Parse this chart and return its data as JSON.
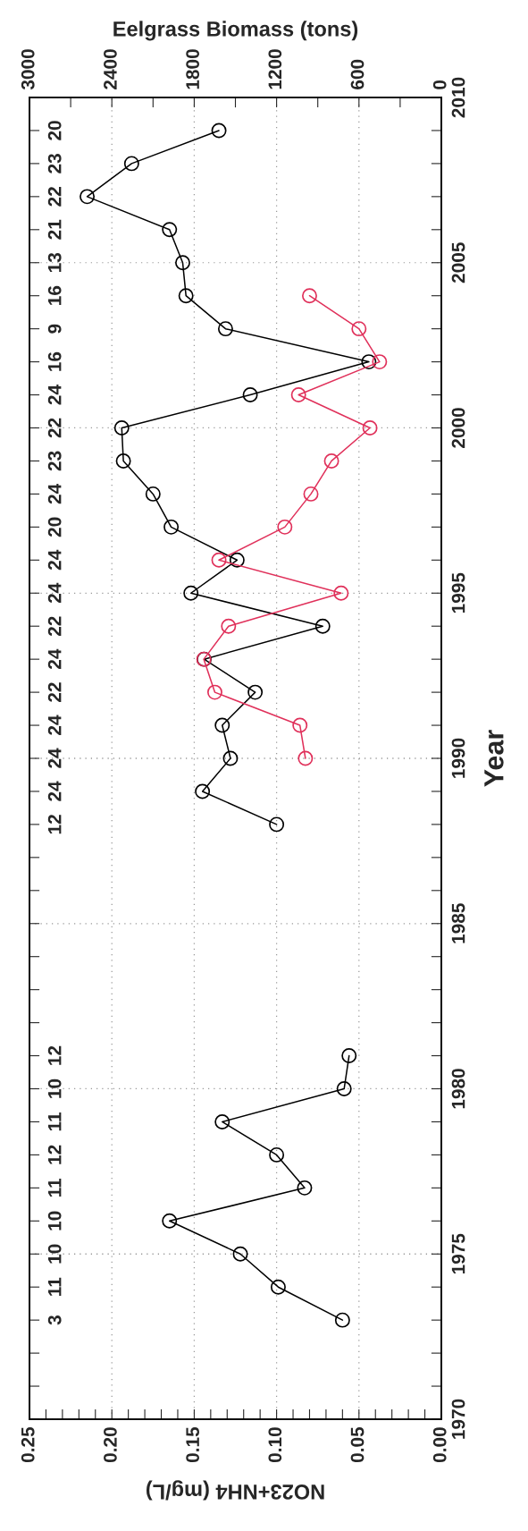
{
  "chart_data": {
    "type": "line",
    "orientation": "horizontal",
    "xlabel": "NO23+NH4 (mg/L)",
    "x2label": "Eelgrass Biomass (tons)",
    "ylabel": "Year",
    "xlim": [
      0.25,
      0
    ],
    "xticks": [
      {
        "value": 0,
        "label": "0.00"
      },
      {
        "value": 0.01,
        "label": null
      },
      {
        "value": 0.02,
        "label": null
      },
      {
        "value": 0.03,
        "label": null
      },
      {
        "value": 0.04,
        "label": null
      },
      {
        "value": 0.05,
        "label": "0.05"
      },
      {
        "value": 0.06,
        "label": null
      },
      {
        "value": 0.07,
        "label": null
      },
      {
        "value": 0.08,
        "label": null
      },
      {
        "value": 0.09,
        "label": null
      },
      {
        "value": 0.1,
        "label": "0.10"
      },
      {
        "value": 0.11,
        "label": null
      },
      {
        "value": 0.12,
        "label": null
      },
      {
        "value": 0.13,
        "label": null
      },
      {
        "value": 0.14,
        "label": null
      },
      {
        "value": 0.15,
        "label": "0.15"
      },
      {
        "value": 0.16,
        "label": null
      },
      {
        "value": 0.17,
        "label": null
      },
      {
        "value": 0.18,
        "label": null
      },
      {
        "value": 0.19,
        "label": null
      },
      {
        "value": 0.2,
        "label": "0.20"
      },
      {
        "value": 0.21,
        "label": null
      },
      {
        "value": 0.22,
        "label": null
      },
      {
        "value": 0.23,
        "label": null
      },
      {
        "value": 0.24,
        "label": null
      },
      {
        "value": 0.25,
        "label": "0.25"
      }
    ],
    "x2lim": [
      3000,
      0
    ],
    "x2ticks": [
      0,
      {
        "value": 300,
        "label": null
      },
      600,
      {
        "value": 900,
        "label": null
      },
      1200,
      {
        "value": 1500,
        "label": null
      },
      1800,
      {
        "value": 2100,
        "label": null
      },
      2400,
      {
        "value": 2700,
        "label": null
      },
      3000
    ],
    "ylim": [
      1970,
      2010
    ],
    "yticks": [
      1970,
      {
        "value": 1971,
        "label": null
      },
      {
        "value": 1972,
        "label": null
      },
      {
        "value": 1973,
        "label": null
      },
      {
        "value": 1974,
        "label": null
      },
      1975,
      {
        "value": 1976,
        "label": null
      },
      {
        "value": 1977,
        "label": null
      },
      {
        "value": 1978,
        "label": null
      },
      {
        "value": 1979,
        "label": null
      },
      1980,
      {
        "value": 1981,
        "label": null
      },
      {
        "value": 1982,
        "label": null
      },
      {
        "value": 1983,
        "label": null
      },
      {
        "value": 1984,
        "label": null
      },
      1985,
      {
        "value": 1986,
        "label": null
      },
      {
        "value": 1987,
        "label": null
      },
      {
        "value": 1988,
        "label": null
      },
      {
        "value": 1989,
        "label": null
      },
      1990,
      {
        "value": 1991,
        "label": null
      },
      {
        "value": 1992,
        "label": null
      },
      {
        "value": 1993,
        "label": null
      },
      {
        "value": 1994,
        "label": null
      },
      1995,
      {
        "value": 1996,
        "label": null
      },
      {
        "value": 1997,
        "label": null
      },
      {
        "value": 1998,
        "label": null
      },
      {
        "value": 1999,
        "label": null
      },
      2000,
      {
        "value": 2001,
        "label": null
      },
      {
        "value": 2002,
        "label": null
      },
      {
        "value": 2003,
        "label": null
      },
      {
        "value": 2004,
        "label": null
      },
      2005,
      {
        "value": 2006,
        "label": null
      },
      {
        "value": 2007,
        "label": null
      },
      {
        "value": 2008,
        "label": null
      },
      {
        "value": 2009,
        "label": null
      },
      2010
    ],
    "grid": true,
    "marker": "circle",
    "line_style": "solid",
    "series": [
      {
        "color": "#000000",
        "x": [
          1973,
          1974,
          1975,
          1976,
          1977,
          1978,
          1979,
          1980,
          1981,
          1982,
          1988,
          1989,
          1990,
          1991,
          1992,
          1993,
          1994,
          1995,
          1996,
          1997,
          1998,
          1999,
          2000,
          2001,
          2002,
          2003,
          2004,
          2005,
          2006,
          2007,
          2008,
          2009
        ],
        "values": [
          0.06,
          0.099,
          0.122,
          0.165,
          0.083,
          0.1,
          0.133,
          0.059,
          0.056,
          null,
          0.1,
          0.145,
          0.128,
          0.133,
          0.113,
          0.144,
          0.072,
          0.152,
          0.124,
          0.164,
          0.175,
          0.193,
          0.194,
          0.116,
          0.044,
          0.131,
          0.155,
          0.157,
          0.165,
          0.215,
          0.188,
          0.135
        ]
      },
      {
        "color": "#e0305a",
        "axis": "x2",
        "x": [
          1990,
          1991,
          1992,
          1993,
          1994,
          1995,
          1996,
          1997,
          1998,
          1999,
          2000,
          2001,
          2002,
          2003,
          2004
        ],
        "values": [
          990,
          1030,
          1650,
          1730,
          1550,
          730,
          1620,
          1140,
          950,
          800,
          520,
          1040,
          450,
          600,
          960
        ]
      }
    ],
    "annotations": [
      "3",
      "11",
      "10",
      "10",
      "11",
      "12",
      "11",
      "10",
      "12",
      "12",
      "24",
      "24",
      "24",
      "22",
      "24",
      "22",
      "24",
      "24",
      "20",
      "24",
      "23",
      "22",
      "24",
      "16",
      "9",
      "16",
      "13",
      "21",
      "22",
      "23",
      "20"
    ]
  }
}
